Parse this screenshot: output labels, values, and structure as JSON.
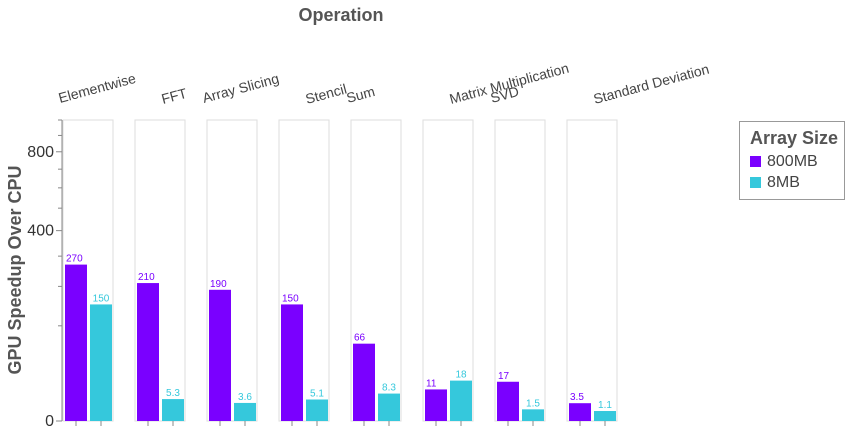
{
  "chart_data": {
    "type": "bar",
    "title": "Operation",
    "ylabel": "GPU Speedup Over CPU",
    "yscale": "sqrt",
    "ylim": [
      0,
      1000
    ],
    "ytick_labels": [
      "0",
      "400",
      "800"
    ],
    "ytick_values": [
      0,
      400,
      800
    ],
    "minor_ticks": [
      100,
      200,
      300,
      500,
      600,
      700,
      900,
      1000
    ],
    "categories": [
      "Elementwise",
      "FFT",
      "Array Slicing",
      "Stencil",
      "Sum",
      "Matrix Multiplication",
      "SVD",
      "Standard Deviation"
    ],
    "series": [
      {
        "name": "800MB",
        "color": "#7a00ff",
        "values": [
          270,
          210,
          190,
          150,
          66,
          11,
          17,
          3.5
        ],
        "labels": [
          "270",
          "210",
          "190",
          "150",
          "66",
          "11",
          "17",
          "3.5"
        ]
      },
      {
        "name": "8MB",
        "color": "#35c8dc",
        "values": [
          150,
          5.3,
          3.6,
          5.1,
          8.3,
          18,
          1.5,
          1.1
        ],
        "labels": [
          "150",
          "5.3",
          "3.6",
          "5.1",
          "8.3",
          "18",
          "1.5",
          "1.1"
        ]
      }
    ],
    "legend": {
      "title": "Array Size",
      "position": "right"
    },
    "grid": false
  }
}
